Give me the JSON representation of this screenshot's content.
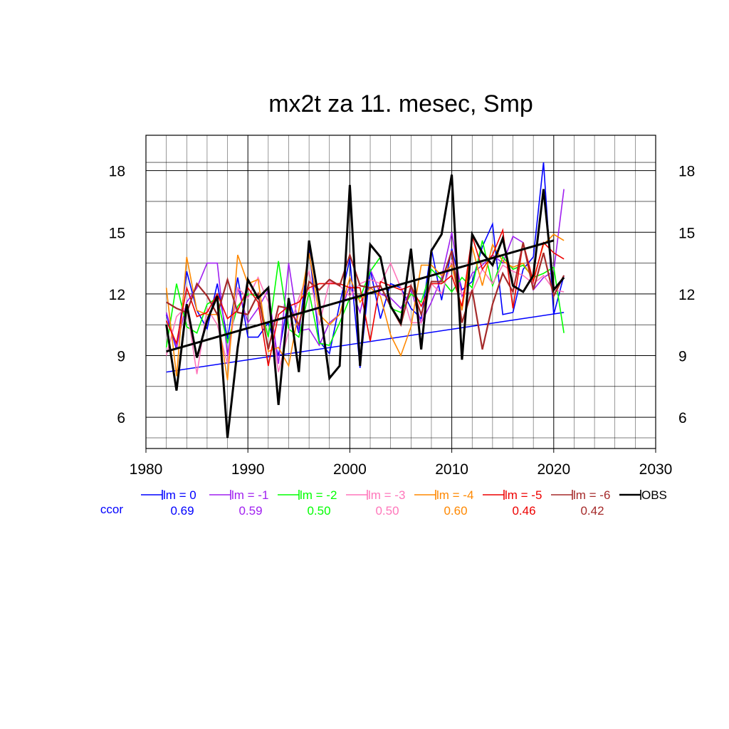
{
  "chart_data": {
    "type": "line",
    "title": "mx2t za 11. mesec, Smp",
    "xlabel": "",
    "ylabel": "",
    "xlim": [
      1980,
      2030
    ],
    "ylim": [
      5,
      19.5
    ],
    "x_ticks": [
      1980,
      1990,
      2000,
      2010,
      2020,
      2030
    ],
    "x_tick_labels": [
      "1980",
      "1990",
      "2000",
      "2010",
      "2020",
      "2030"
    ],
    "y_ticks": [
      6,
      9,
      12,
      15,
      18
    ],
    "y_tick_labels": [
      "6",
      "9",
      "12",
      "15",
      "18"
    ],
    "grid": true,
    "legend_position": "bottom",
    "ccor_label": "ccor",
    "x": [
      1982,
      1983,
      1984,
      1985,
      1986,
      1987,
      1988,
      1989,
      1990,
      1991,
      1992,
      1993,
      1994,
      1995,
      1996,
      1997,
      1998,
      1999,
      2000,
      2001,
      2002,
      2003,
      2004,
      2005,
      2006,
      2007,
      2008,
      2009,
      2010,
      2011,
      2012,
      2013,
      2014,
      2015,
      2016,
      2017,
      2018,
      2019,
      2020,
      2021
    ],
    "series": [
      {
        "name": "lm = 0",
        "ccor": "0.69",
        "color": "#0000ff",
        "width": 1.6,
        "values": [
          11.0,
          9.3,
          13.1,
          11.2,
          10.3,
          12.5,
          9.8,
          12.8,
          9.9,
          9.9,
          10.6,
          9.0,
          11.8,
          10.1,
          14.2,
          9.7,
          9.1,
          11.5,
          13.7,
          8.4,
          13.2,
          10.8,
          12.5,
          12.3,
          11.3,
          10.8,
          14.2,
          11.7,
          14.2,
          12.2,
          12.6,
          14.3,
          15.4,
          11.0,
          11.1,
          13.2,
          13.8,
          18.4,
          11.0,
          12.9
        ],
        "trend": [
          [
            1982,
            8.2
          ],
          [
            2021,
            11.1
          ]
        ]
      },
      {
        "name": "lm = -1",
        "ccor": "0.59",
        "color": "#a020f0",
        "width": 1.6,
        "values": [
          11.1,
          9.4,
          11.6,
          12.3,
          13.5,
          13.5,
          9.0,
          12.3,
          10.6,
          11.3,
          12.2,
          8.6,
          13.5,
          10.2,
          10.3,
          9.5,
          10.6,
          11.0,
          12.4,
          11.1,
          13.2,
          12.0,
          11.8,
          11.3,
          12.2,
          10.6,
          11.6,
          12.8,
          15.0,
          11.9,
          13.0,
          13.4,
          13.9,
          13.5,
          14.8,
          14.5,
          12.2,
          12.8,
          13.1,
          17.1
        ]
      },
      {
        "name": "lm = -2",
        "ccor": "0.50",
        "color": "#00ff00",
        "width": 1.6,
        "values": [
          9.4,
          12.5,
          10.4,
          10.1,
          11.5,
          11.8,
          9.6,
          11.4,
          12.0,
          11.9,
          9.9,
          13.6,
          10.3,
          9.9,
          12.1,
          9.6,
          9.5,
          10.6,
          11.8,
          11.8,
          13.1,
          13.8,
          11.3,
          11.1,
          12.0,
          11.6,
          13.2,
          12.7,
          12.1,
          12.8,
          12.3,
          14.6,
          12.4,
          13.8,
          13.2,
          13.4,
          12.8,
          13.0,
          13.3,
          10.1
        ]
      },
      {
        "name": "lm = -3",
        "ccor": "0.50",
        "color": "#ff77bb",
        "width": 1.6,
        "values": [
          9.0,
          10.9,
          11.4,
          8.1,
          11.3,
          10.5,
          8.6,
          12.3,
          11.8,
          12.8,
          11.6,
          8.2,
          10.2,
          11.8,
          13.1,
          10.5,
          12.6,
          12.4,
          11.9,
          12.5,
          12.7,
          12.5,
          13.5,
          12.3,
          10.6,
          10.6,
          12.5,
          12.0,
          13.6,
          12.0,
          12.1,
          13.2,
          12.5,
          13.4,
          13.1,
          12.9,
          12.5,
          12.9,
          12.2,
          12.1
        ]
      },
      {
        "name": "lm = -4",
        "ccor": "0.60",
        "color": "#ff8800",
        "width": 1.6,
        "values": [
          12.3,
          8.0,
          13.8,
          11.2,
          11.0,
          11.0,
          7.8,
          13.9,
          12.5,
          12.7,
          9.2,
          9.4,
          8.5,
          11.2,
          14.0,
          11.0,
          10.5,
          11.0,
          12.8,
          11.6,
          12.3,
          11.9,
          10.0,
          9.0,
          10.4,
          13.4,
          13.4,
          12.9,
          13.4,
          11.2,
          14.3,
          12.4,
          14.4,
          13.6,
          13.3,
          13.5,
          12.7,
          14.4,
          14.9,
          14.6
        ]
      },
      {
        "name": "lm = -5",
        "ccor": "0.46",
        "color": "#ee0000",
        "width": 1.6,
        "values": [
          10.7,
          9.6,
          12.3,
          10.9,
          11.1,
          12.0,
          10.8,
          11.2,
          12.3,
          11.6,
          8.5,
          11.0,
          11.4,
          11.6,
          12.3,
          12.5,
          12.5,
          12.5,
          12.3,
          12.3,
          9.7,
          12.6,
          12.4,
          12.2,
          12.4,
          11.4,
          12.5,
          12.5,
          12.9,
          11.4,
          14.8,
          13.2,
          13.9,
          15.1,
          11.3,
          14.5,
          12.6,
          14.5,
          14.0,
          13.7
        ]
      },
      {
        "name": "lm = -6",
        "ccor": "0.42",
        "color": "#a52a2a",
        "width": 2.2,
        "values": [
          11.6,
          11.3,
          11.1,
          12.5,
          11.9,
          11.0,
          12.7,
          11.1,
          11.0,
          12.0,
          9.3,
          11.4,
          11.3,
          10.5,
          12.6,
          12.2,
          12.7,
          12.4,
          13.9,
          12.4,
          12.3,
          12.4,
          11.4,
          10.5,
          12.4,
          11.0,
          12.6,
          12.6,
          14.1,
          10.6,
          12.2,
          9.3,
          11.5,
          13.0,
          12.1,
          14.5,
          12.2,
          14.0,
          11.9,
          12.9
        ]
      },
      {
        "name": "OBS",
        "ccor": "",
        "color": "#000000",
        "width": 3.0,
        "values": [
          10.5,
          7.3,
          11.5,
          8.9,
          10.7,
          11.9,
          5.0,
          9.4,
          12.7,
          11.8,
          12.3,
          6.6,
          11.8,
          8.2,
          14.6,
          11.6,
          7.9,
          8.5,
          17.3,
          8.5,
          14.4,
          13.8,
          11.4,
          10.6,
          14.2,
          9.3,
          14.1,
          14.9,
          17.8,
          8.8,
          14.9,
          14.0,
          13.4,
          14.7,
          12.4,
          12.1,
          12.9,
          17.1,
          12.2,
          12.8
        ],
        "trend": [
          [
            1982,
            9.2
          ],
          [
            2020,
            14.6
          ]
        ]
      }
    ]
  }
}
